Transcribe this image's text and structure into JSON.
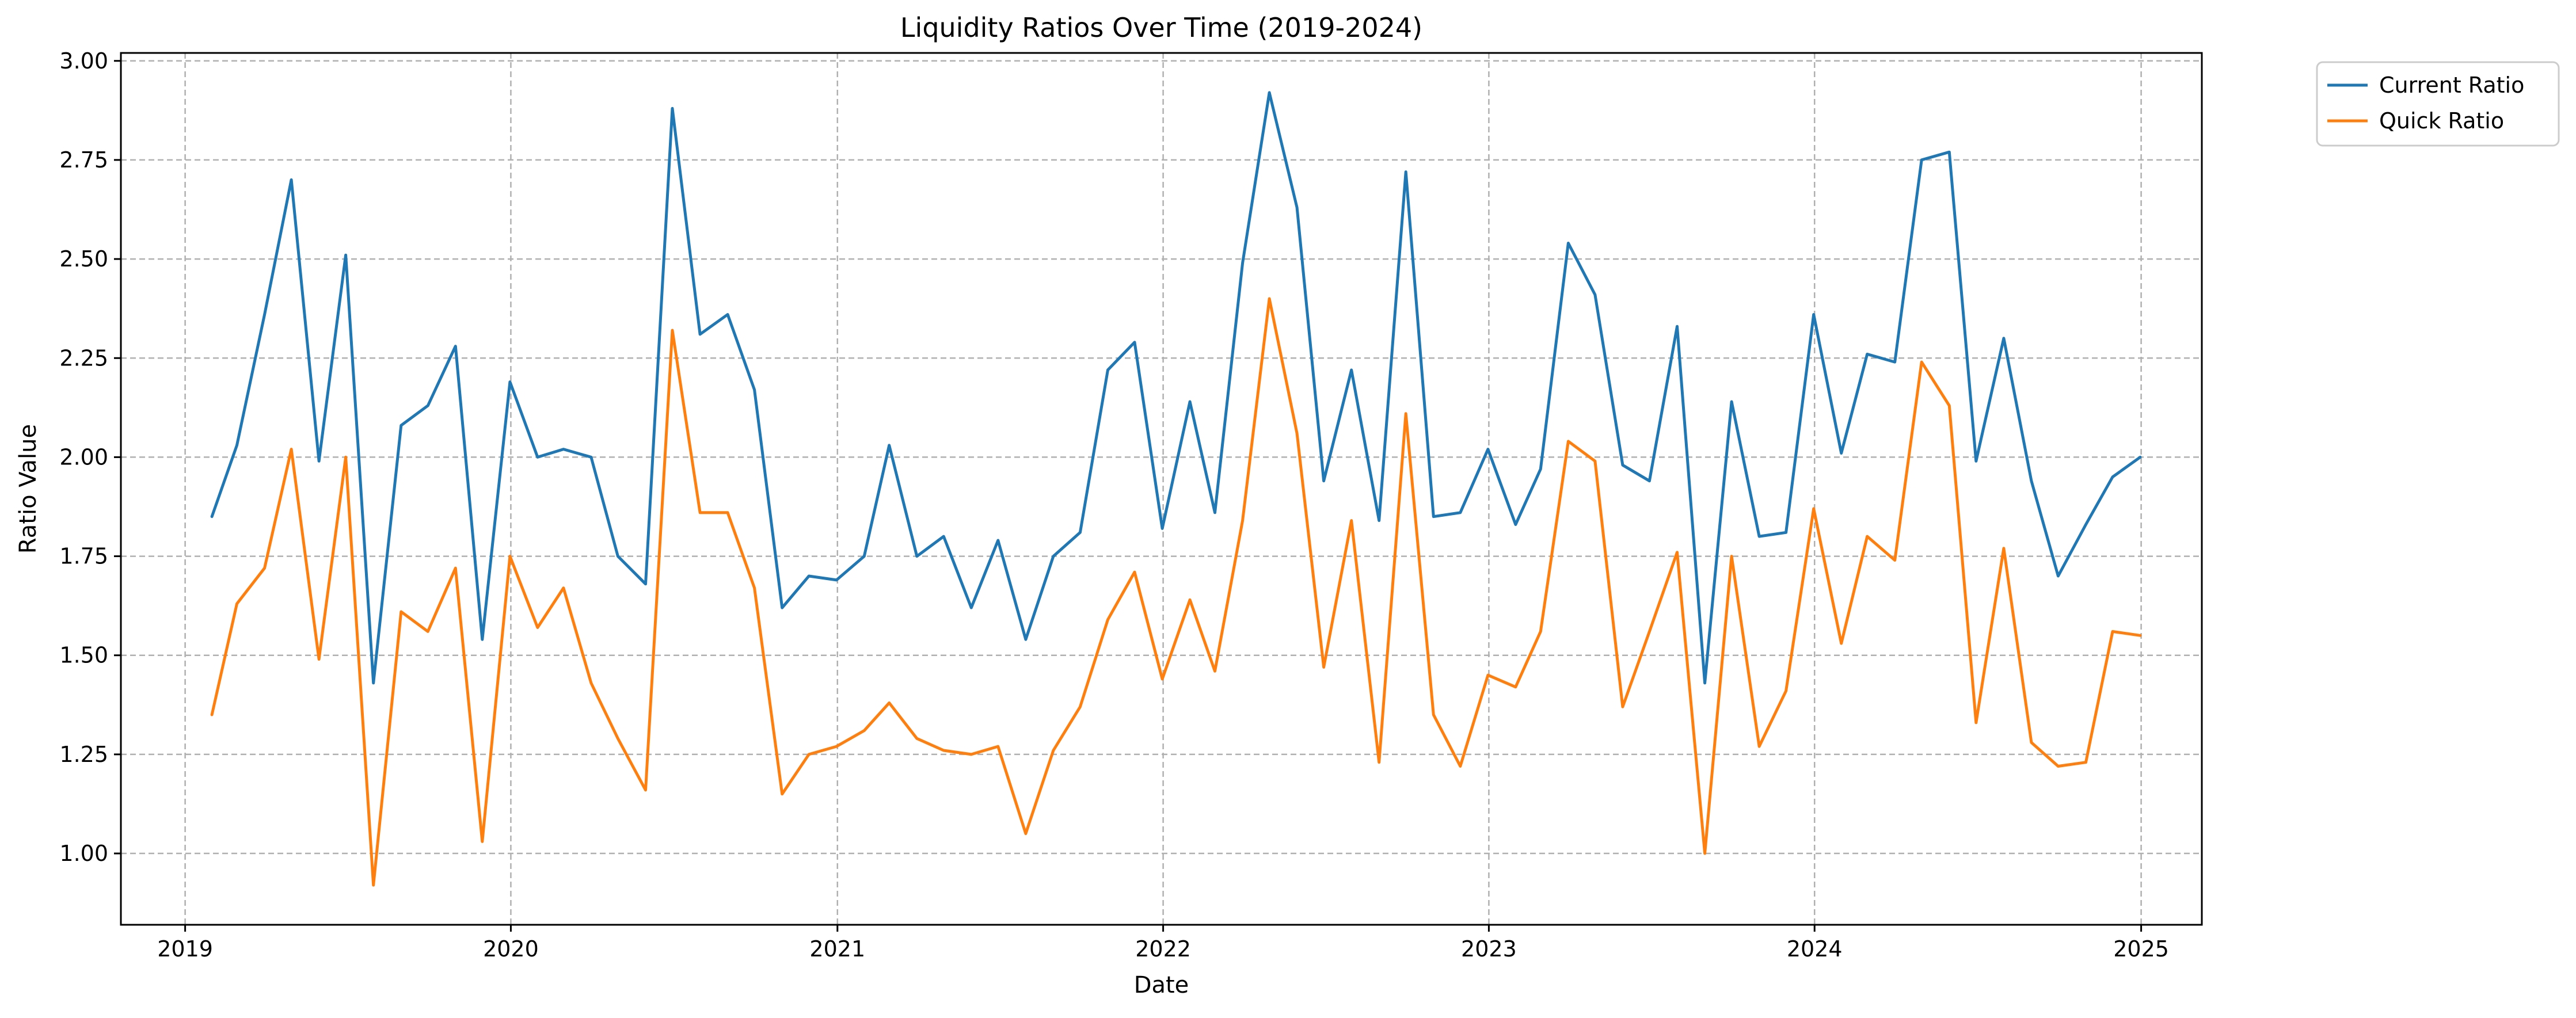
{
  "chart_data": {
    "type": "line",
    "title": "Liquidity Ratios Over Time (2019-2024)",
    "xlabel": "Date",
    "ylabel": "Ratio Value",
    "xlim": [
      "2018-10-21",
      "2025-03-10"
    ],
    "ylim": [
      0.82,
      3.02
    ],
    "x_ticks": [
      "2019",
      "2020",
      "2021",
      "2022",
      "2023",
      "2024",
      "2025"
    ],
    "y_ticks": [
      "1.00",
      "1.25",
      "1.50",
      "1.75",
      "2.00",
      "2.25",
      "2.50",
      "2.75",
      "3.00"
    ],
    "grid": true,
    "legend_position": "outside top-right",
    "x": [
      "2019-01-31",
      "2019-02-28",
      "2019-03-31",
      "2019-04-30",
      "2019-05-31",
      "2019-06-30",
      "2019-07-31",
      "2019-08-31",
      "2019-09-30",
      "2019-10-31",
      "2019-11-30",
      "2019-12-31",
      "2020-01-31",
      "2020-02-29",
      "2020-03-31",
      "2020-04-30",
      "2020-05-31",
      "2020-06-30",
      "2020-07-31",
      "2020-08-31",
      "2020-09-30",
      "2020-10-31",
      "2020-11-30",
      "2020-12-31",
      "2021-01-31",
      "2021-02-28",
      "2021-03-31",
      "2021-04-30",
      "2021-05-31",
      "2021-06-30",
      "2021-07-31",
      "2021-08-31",
      "2021-09-30",
      "2021-10-31",
      "2021-11-30",
      "2021-12-31",
      "2022-01-31",
      "2022-02-28",
      "2022-03-31",
      "2022-04-30",
      "2022-05-31",
      "2022-06-30",
      "2022-07-31",
      "2022-08-31",
      "2022-09-30",
      "2022-10-31",
      "2022-11-30",
      "2022-12-31",
      "2023-01-31",
      "2023-02-28",
      "2023-03-31",
      "2023-04-30",
      "2023-05-31",
      "2023-06-30",
      "2023-07-31",
      "2023-08-31",
      "2023-09-30",
      "2023-10-31",
      "2023-11-30",
      "2023-12-31",
      "2024-01-31",
      "2024-02-29",
      "2024-03-31",
      "2024-04-30",
      "2024-05-31",
      "2024-06-30",
      "2024-07-31",
      "2024-08-31",
      "2024-09-30",
      "2024-10-31",
      "2024-11-30",
      "2024-12-31"
    ],
    "series": [
      {
        "name": "Current Ratio",
        "color": "#1f77b4",
        "values": [
          1.85,
          2.03,
          2.36,
          2.7,
          1.99,
          2.51,
          1.43,
          2.08,
          2.13,
          2.28,
          1.54,
          2.19,
          2.0,
          2.02,
          2.0,
          1.75,
          1.68,
          2.88,
          2.31,
          2.36,
          2.17,
          1.62,
          1.7,
          1.69,
          1.75,
          2.03,
          1.75,
          1.8,
          1.62,
          1.79,
          1.54,
          1.75,
          1.81,
          2.22,
          2.29,
          1.82,
          2.14,
          1.86,
          2.49,
          2.92,
          2.63,
          1.94,
          2.22,
          1.84,
          2.72,
          1.85,
          1.86,
          2.02,
          1.83,
          1.97,
          2.54,
          2.41,
          1.98,
          1.94,
          2.33,
          1.43,
          2.14,
          1.8,
          1.81,
          2.36,
          2.01,
          2.26,
          2.24,
          2.75,
          2.77,
          1.99,
          2.3,
          1.94,
          1.7,
          1.83,
          1.95,
          2.0
        ]
      },
      {
        "name": "Quick Ratio",
        "color": "#ff7f0e",
        "values": [
          1.35,
          1.63,
          1.72,
          2.02,
          1.49,
          2.0,
          0.92,
          1.61,
          1.56,
          1.72,
          1.03,
          1.75,
          1.57,
          1.67,
          1.43,
          1.29,
          1.16,
          2.32,
          1.86,
          1.86,
          1.67,
          1.15,
          1.25,
          1.27,
          1.31,
          1.38,
          1.29,
          1.26,
          1.25,
          1.27,
          1.05,
          1.26,
          1.37,
          1.59,
          1.71,
          1.44,
          1.64,
          1.46,
          1.84,
          2.4,
          2.06,
          1.47,
          1.84,
          1.23,
          2.11,
          1.35,
          1.22,
          1.45,
          1.42,
          1.56,
          2.04,
          1.99,
          1.37,
          1.56,
          1.76,
          1.0,
          1.75,
          1.27,
          1.41,
          1.87,
          1.53,
          1.8,
          1.74,
          2.24,
          2.13,
          1.33,
          1.77,
          1.28,
          1.22,
          1.23,
          1.56,
          1.55
        ]
      }
    ]
  }
}
